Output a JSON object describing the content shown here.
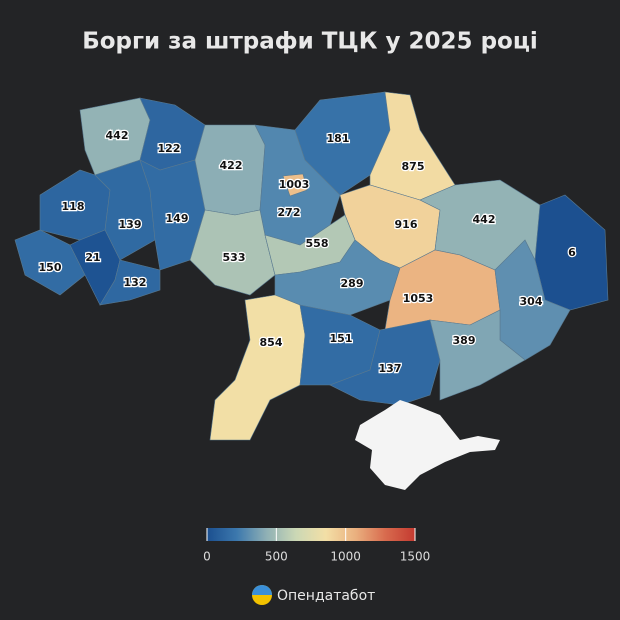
{
  "chart_data": {
    "type": "choropleth",
    "title": "Борги за штрафи ТЦК у 2025 році",
    "values": [
      442,
      122,
      118,
      139,
      149,
      150,
      21,
      132,
      422,
      272,
      1003,
      181,
      875,
      916,
      442,
      6,
      533,
      558,
      289,
      1053,
      304,
      854,
      151,
      137,
      389
    ],
    "clim": [
      0,
      1500
    ],
    "cticks": [
      0,
      500,
      1000,
      1500
    ],
    "colorscale": [
      "#1b4f8f",
      "#3c78ad",
      "#8fb0b5",
      "#cbd8b5",
      "#f3dfa6",
      "#eab07f",
      "#d86b4e",
      "#c43a30"
    ],
    "source": "Опендатабот"
  }
}
